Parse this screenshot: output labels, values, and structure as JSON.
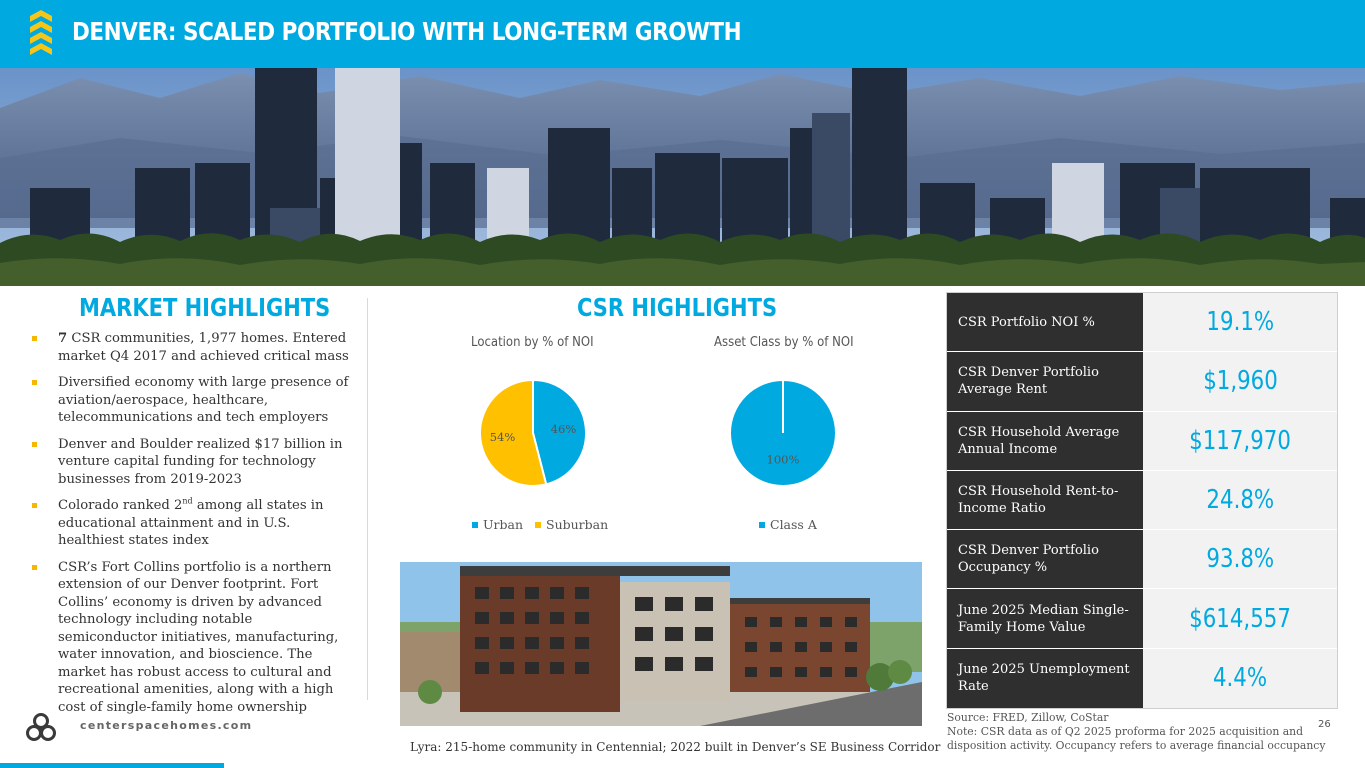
{
  "header": {
    "title": "DENVER: SCALED PORTFOLIO WITH LONG-TERM GROWTH"
  },
  "market_highlights": {
    "title": "MARKET HIGHLIGHTS",
    "bullets": [
      {
        "bold": "7",
        "text": " CSR communities, 1,977 homes.  Entered market Q4 2017 and achieved critical mass"
      },
      {
        "text": "Diversified economy with large presence of aviation/aerospace, healthcare, telecommunications and tech employers"
      },
      {
        "text": "Denver and Boulder realized $17 billion in venture capital funding for technology businesses from 2019-2023"
      },
      {
        "text_before": "Colorado ranked 2",
        "sup": "nd",
        "text_after": " among all states in educational attainment and in U.S. healthiest states index"
      },
      {
        "text": "CSR’s Fort Collins portfolio is a northern extension of our Denver footprint.  Fort Collins’ economy is driven by advanced technology including notable semiconductor initiatives, manufacturing, water innovation, and bioscience.  The market has robust access to cultural and recreational amenities, along with a high cost of single-family home ownership"
      }
    ]
  },
  "csr_highlights": {
    "title": "CSR HIGHLIGHTS"
  },
  "chart_data": [
    {
      "type": "pie",
      "title": "Location by % of NOI",
      "categories": [
        "Urban",
        "Suburban"
      ],
      "values": [
        46,
        54
      ],
      "data_labels": [
        "46%",
        "54%"
      ],
      "colors": [
        "#00a9e0",
        "#ffc000"
      ],
      "legend": "bottom"
    },
    {
      "type": "pie",
      "title": "Asset Class by % of NOI",
      "categories": [
        "Class A"
      ],
      "values": [
        100
      ],
      "data_labels": [
        "100%"
      ],
      "colors": [
        "#00a9e0"
      ],
      "legend": "bottom"
    }
  ],
  "photo_caption": "Lyra: 215-home community in Centennial; 2022 built in Denver’s SE Business Corridor",
  "stats": [
    {
      "label": "CSR Portfolio NOI %",
      "value": "19.1%"
    },
    {
      "label": "CSR Denver Portfolio Average Rent",
      "value": "$1,960"
    },
    {
      "label": "CSR Household Average Annual Income",
      "value": "$117,970"
    },
    {
      "label": "CSR Household Rent-to-Income Ratio",
      "value": "24.8%"
    },
    {
      "label": "CSR Denver Portfolio Occupancy %",
      "value": "93.8%"
    },
    {
      "label": "June 2025 Median Single-Family Home Value",
      "value": "$614,557"
    },
    {
      "label": "June 2025 Unemployment Rate",
      "value": "4.4%"
    }
  ],
  "source": {
    "line1": "Source: FRED, Zillow, CoStar",
    "line2": "Note: CSR data as of Q2 2025 proforma for 2025 acquisition and disposition activity. Occupancy refers to average financial occupancy"
  },
  "page_number": "26",
  "footer": {
    "url": "centerspacehomes.com"
  },
  "colors": {
    "accent": "#00a9e0",
    "gold": "#f5b700",
    "dark_cell": "#2f2f2f",
    "light_cell": "#f2f2f2"
  }
}
